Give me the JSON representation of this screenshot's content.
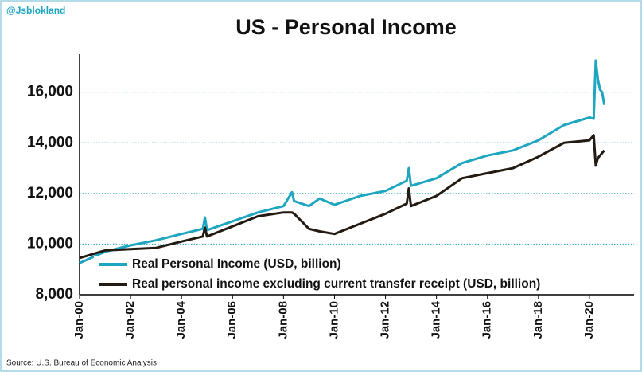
{
  "chart_data": {
    "type": "line",
    "title": "US - Personal Income",
    "watermark": "@Jsblokland",
    "source": "Source: U.S. Bureau of Economic Analysis",
    "x": [
      "Jan-00",
      "Jan-01",
      "Jan-02",
      "Jan-03",
      "Jan-04",
      "Nov-04",
      "Dec-04",
      "Jan-05",
      "Jan-06",
      "Jan-07",
      "Jan-08",
      "May-08",
      "Jun-08",
      "Jan-09",
      "Jun-09",
      "Jan-10",
      "Jan-11",
      "Jan-12",
      "Nov-12",
      "Dec-12",
      "Jan-13",
      "Jan-14",
      "Jan-15",
      "Jan-16",
      "Jan-17",
      "Jan-18",
      "Jan-19",
      "Jan-20",
      "Mar-20",
      "Apr-20",
      "May-20",
      "Jun-20",
      "Jul-20",
      "Aug-20"
    ],
    "series": [
      {
        "name": "Real Personal Income (USD, billion)",
        "color": "#1ea5c0",
        "values": [
          9250,
          9700,
          9950,
          10150,
          10400,
          10600,
          11050,
          10550,
          10900,
          11250,
          11500,
          12050,
          11700,
          11500,
          11800,
          11550,
          11900,
          12100,
          12500,
          13000,
          12300,
          12600,
          13200,
          13500,
          13700,
          14100,
          14700,
          15000,
          14950,
          17250,
          16500,
          16100,
          16000,
          15500
        ]
      },
      {
        "name": "Real personal income excluding current transfer receipt (USD, billion)",
        "color": "#231a12",
        "values": [
          9450,
          9750,
          9800,
          9850,
          10100,
          10300,
          10650,
          10300,
          10700,
          11100,
          11250,
          11250,
          11200,
          10600,
          10500,
          10400,
          10800,
          11200,
          11600,
          12200,
          11500,
          11900,
          12600,
          12800,
          13000,
          13450,
          14000,
          14100,
          14300,
          13100,
          13400,
          13500,
          13600,
          13700
        ]
      }
    ],
    "xlim": [
      "Jan-00",
      "Oct-21"
    ],
    "xticks": [
      "Jan-00",
      "Jan-02",
      "Jan-04",
      "Jan-06",
      "Jan-08",
      "Jan-10",
      "Jan-12",
      "Jan-14",
      "Jan-16",
      "Jan-18",
      "Jan-20"
    ],
    "ylim": [
      8000,
      17500
    ],
    "yticks": [
      {
        "value": 8000,
        "label": "8,000"
      },
      {
        "value": 10000,
        "label": "10,000"
      },
      {
        "value": 12000,
        "label": "12,000"
      },
      {
        "value": 14000,
        "label": "14,000"
      },
      {
        "value": 16000,
        "label": "16,000"
      }
    ],
    "grid": true,
    "legend": "bottom"
  }
}
